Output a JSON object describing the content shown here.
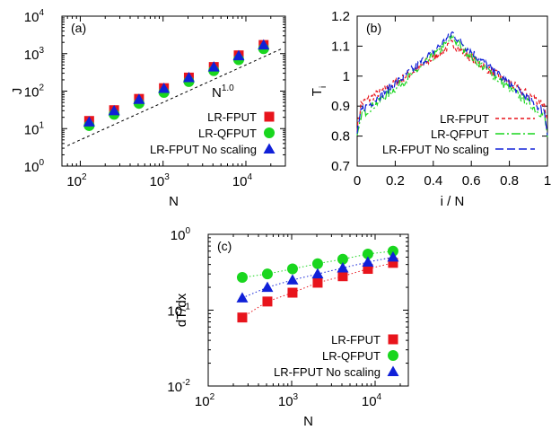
{
  "colors": {
    "fput": "#e8141c",
    "qfput": "#19d61e",
    "noscale": "#1020d8",
    "ref": "#000000"
  },
  "chart_data": [
    {
      "id": "a",
      "type": "scatter",
      "panel_label": "(a)",
      "xlabel": "N",
      "ylabel": "J",
      "xscale": "log",
      "yscale": "log",
      "xlim": [
        60,
        30000
      ],
      "ylim": [
        1,
        10000
      ],
      "xticks": [
        {
          "value": 100,
          "base": "10",
          "exp": "2"
        },
        {
          "value": 1000,
          "base": "10",
          "exp": "3"
        },
        {
          "value": 10000,
          "base": "10",
          "exp": "4"
        }
      ],
      "yticks": [
        {
          "value": 1,
          "base": "10",
          "exp": "0"
        },
        {
          "value": 10,
          "base": "10",
          "exp": "1"
        },
        {
          "value": 100,
          "base": "10",
          "exp": "2"
        },
        {
          "value": 1000,
          "base": "10",
          "exp": "3"
        },
        {
          "value": 10000,
          "base": "10",
          "exp": "4"
        }
      ],
      "legend_position": "bottom-right",
      "series": [
        {
          "name": "LR-FPUT",
          "marker": "square",
          "color": "#e8141c",
          "x": [
            128,
            256,
            512,
            1024,
            2048,
            4096,
            8192,
            16384
          ],
          "y": [
            16,
            31,
            62,
            120,
            230,
            440,
            900,
            1700
          ]
        },
        {
          "name": "LR-QFPUT",
          "marker": "circle",
          "color": "#19d61e",
          "x": [
            128,
            256,
            512,
            1024,
            2048,
            4096,
            8192,
            16384
          ],
          "y": [
            12,
            24,
            47,
            92,
            180,
            350,
            690,
            1350
          ]
        },
        {
          "name": "LR-FPUT No scaling",
          "marker": "triangle",
          "color": "#1020d8",
          "x": [
            128,
            256,
            512,
            1024,
            2048,
            4096,
            8192,
            16384
          ],
          "y": [
            15,
            30,
            60,
            118,
            228,
            440,
            880,
            1700
          ]
        }
      ],
      "reference_line": {
        "label": "N",
        "exponent": "1.0",
        "x": [
          70,
          28000
        ],
        "y": [
          3.5,
          1400
        ]
      }
    },
    {
      "id": "b",
      "type": "line",
      "panel_label": "(b)",
      "xlabel": "i / N",
      "ylabel": "T",
      "ylabel_sub": "i",
      "xlim": [
        0,
        1
      ],
      "ylim": [
        0.7,
        1.2
      ],
      "xticks": [
        "0",
        "0.2",
        "0.4",
        "0.6",
        "0.8",
        "1"
      ],
      "yticks": [
        "0.7",
        "0.8",
        "0.9",
        "1",
        "1.1",
        "1.2"
      ],
      "legend_position": "bottom-right",
      "series": [
        {
          "name": "LR-FPUT",
          "dash": "4,3",
          "color": "#e8141c",
          "edge": 0.9,
          "peak": 1.11,
          "trough_offset": 0.0
        },
        {
          "name": "LR-QFPUT",
          "dash": "10,3,2,3",
          "color": "#19d61e",
          "edge": 0.86,
          "peak": 1.13,
          "trough_offset": 0.0
        },
        {
          "name": "LR-FPUT No scaling",
          "dash": "9,4",
          "color": "#1020d8",
          "edge": 0.875,
          "peak": 1.145,
          "trough_offset": 0.0
        }
      ]
    },
    {
      "id": "c",
      "type": "scatter",
      "panel_label": "(c)",
      "xlabel": "N",
      "ylabel": "dT/dx",
      "xscale": "log",
      "yscale": "log",
      "xlim": [
        100,
        25000
      ],
      "ylim": [
        0.01,
        1
      ],
      "xticks": [
        {
          "value": 100,
          "base": "10",
          "exp": "2"
        },
        {
          "value": 1000,
          "base": "10",
          "exp": "3"
        },
        {
          "value": 10000,
          "base": "10",
          "exp": "4"
        }
      ],
      "yticks": [
        {
          "value": 0.01,
          "base": "10",
          "exp": "-2"
        },
        {
          "value": 0.1,
          "base": "10",
          "exp": "-1"
        },
        {
          "value": 1,
          "base": "10",
          "exp": "0"
        }
      ],
      "legend_position": "bottom-right",
      "series": [
        {
          "name": "LR-FPUT",
          "marker": "square",
          "color": "#e8141c",
          "x": [
            256,
            512,
            1024,
            2048,
            4096,
            8192,
            16384
          ],
          "y": [
            0.08,
            0.13,
            0.17,
            0.23,
            0.28,
            0.35,
            0.42
          ]
        },
        {
          "name": "LR-QFPUT",
          "marker": "circle",
          "color": "#19d61e",
          "x": [
            256,
            512,
            1024,
            2048,
            4096,
            8192,
            16384
          ],
          "y": [
            0.27,
            0.3,
            0.35,
            0.41,
            0.47,
            0.55,
            0.6
          ]
        },
        {
          "name": "LR-FPUT No scaling",
          "marker": "triangle",
          "color": "#1020d8",
          "x": [
            256,
            512,
            1024,
            2048,
            4096,
            8192,
            16384
          ],
          "y": [
            0.145,
            0.2,
            0.25,
            0.3,
            0.36,
            0.43,
            0.5
          ]
        }
      ]
    }
  ]
}
